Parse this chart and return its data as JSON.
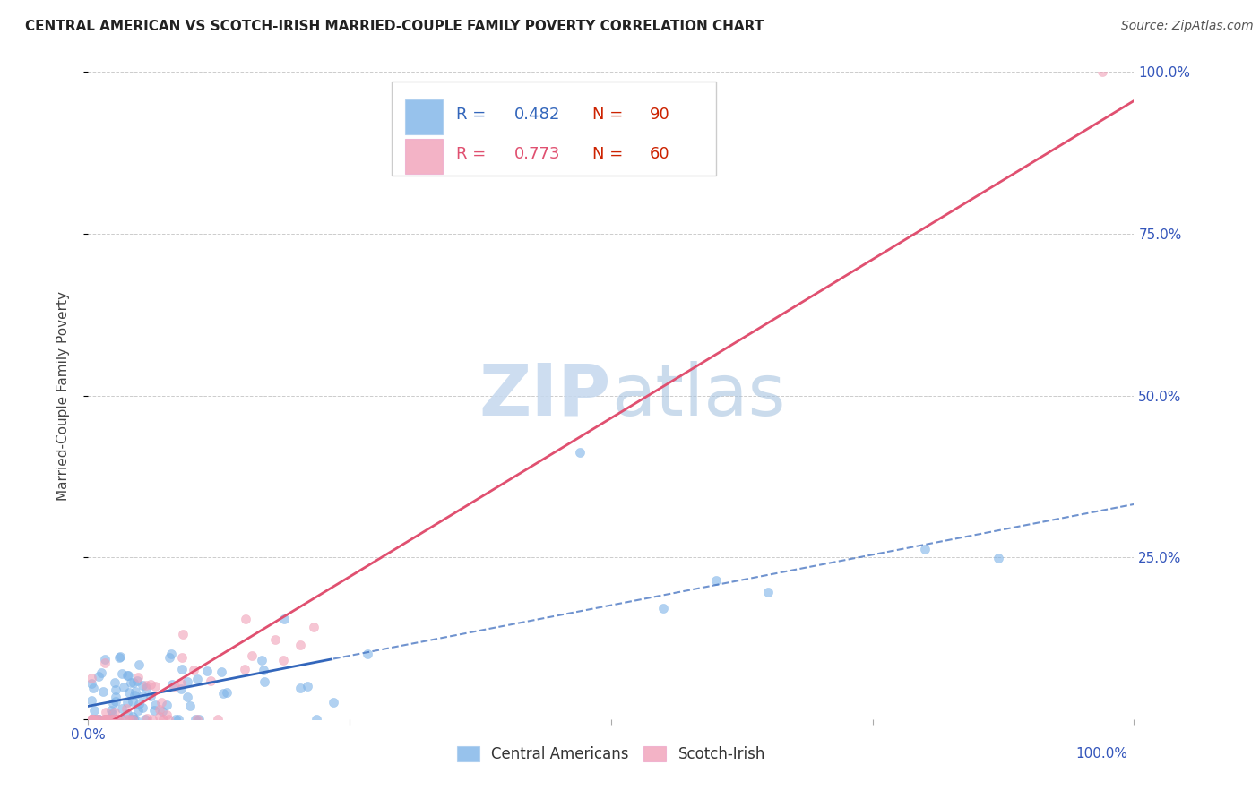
{
  "title": "CENTRAL AMERICAN VS SCOTCH-IRISH MARRIED-COUPLE FAMILY POVERTY CORRELATION CHART",
  "source": "Source: ZipAtlas.com",
  "ylabel": "Married-Couple Family Poverty",
  "blue_color": "#7db3e8",
  "pink_color": "#f0a0b8",
  "blue_line_color": "#3366bb",
  "pink_line_color": "#e05070",
  "blue_R": 0.482,
  "blue_N": 90,
  "pink_R": 0.773,
  "pink_N": 60,
  "n_color": "#cc2200",
  "watermark_color": "#c5d8ee",
  "grid_color": "#cccccc",
  "right_label_color": "#3355bb"
}
